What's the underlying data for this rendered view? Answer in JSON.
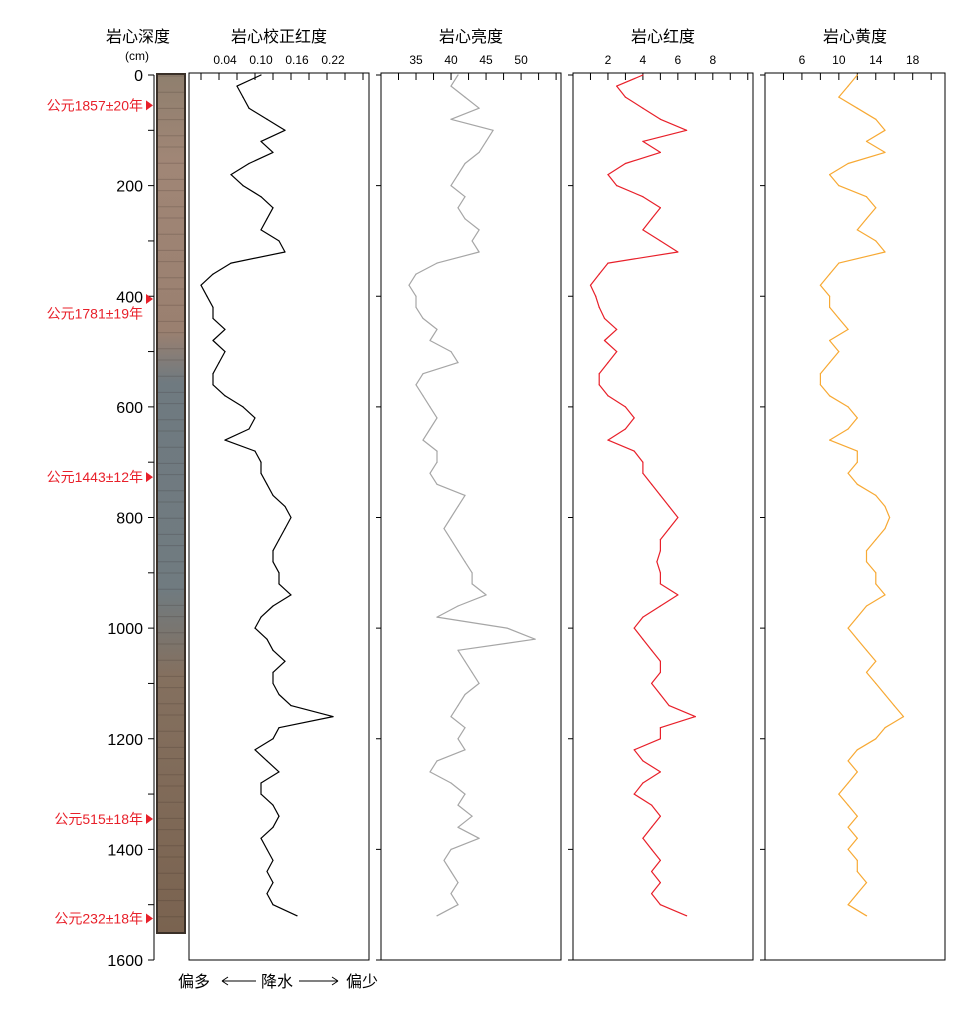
{
  "chart_data": {
    "type": "line",
    "depth_axis": {
      "title": "岩心深度",
      "unit": "(cm)",
      "range": [
        0,
        1600
      ],
      "ticks": [
        0,
        200,
        400,
        600,
        800,
        1000,
        1200,
        1400,
        1600
      ],
      "minor_step": 100
    },
    "age_markers": [
      {
        "label": "公元1857±20年",
        "depth": 55
      },
      {
        "label": "公元1781±19年",
        "depth": 405
      },
      {
        "label": "公元1443±12年",
        "depth": 727
      },
      {
        "label": "公元515±18年",
        "depth": 1345
      },
      {
        "label": "公元232±18年",
        "depth": 1525
      }
    ],
    "precip_annotation": {
      "left": "偏多",
      "middle": "降水",
      "right": "偏少"
    },
    "depth": [
      0,
      20,
      40,
      60,
      80,
      100,
      120,
      140,
      160,
      180,
      200,
      220,
      240,
      260,
      280,
      300,
      320,
      340,
      360,
      380,
      400,
      420,
      440,
      460,
      480,
      500,
      520,
      540,
      560,
      580,
      600,
      620,
      640,
      660,
      680,
      700,
      720,
      740,
      760,
      780,
      800,
      820,
      840,
      860,
      880,
      900,
      920,
      940,
      960,
      980,
      1000,
      1020,
      1040,
      1060,
      1080,
      1100,
      1120,
      1140,
      1160,
      1180,
      1200,
      1220,
      1240,
      1260,
      1280,
      1300,
      1320,
      1340,
      1360,
      1380,
      1400,
      1420,
      1440,
      1460,
      1480,
      1500,
      1520
    ],
    "series": [
      {
        "name": "岩心校正红度",
        "color": "#000000",
        "xlim": [
          -0.02,
          0.28
        ],
        "ticks": [
          0.04,
          0.1,
          0.16,
          0.22
        ],
        "minor_step": 0.03,
        "values": [
          0.1,
          0.06,
          0.07,
          0.08,
          0.11,
          0.14,
          0.1,
          0.12,
          0.08,
          0.05,
          0.07,
          0.1,
          0.12,
          0.11,
          0.1,
          0.13,
          0.14,
          0.05,
          0.02,
          0.0,
          0.01,
          0.02,
          0.02,
          0.04,
          0.02,
          0.04,
          0.03,
          0.02,
          0.02,
          0.04,
          0.07,
          0.09,
          0.08,
          0.04,
          0.09,
          0.1,
          0.1,
          0.11,
          0.12,
          0.14,
          0.15,
          0.14,
          0.13,
          0.12,
          0.12,
          0.13,
          0.13,
          0.15,
          0.12,
          0.1,
          0.09,
          0.11,
          0.12,
          0.14,
          0.12,
          0.12,
          0.13,
          0.15,
          0.22,
          0.13,
          0.12,
          0.09,
          0.11,
          0.13,
          0.1,
          0.1,
          0.12,
          0.13,
          0.12,
          0.1,
          0.11,
          0.12,
          0.11,
          0.12,
          0.11,
          0.12,
          0.16
        ]
      },
      {
        "name": "岩心亮度",
        "color": "#a6a6a6",
        "xlim": [
          30,
          55.7
        ],
        "ticks": [
          35,
          40,
          45,
          50
        ],
        "minor_step": 2.5,
        "values": [
          41,
          40,
          42,
          44,
          40,
          46,
          45,
          44,
          42,
          41,
          40,
          42,
          41,
          42,
          44,
          43,
          44,
          38,
          35,
          34,
          35,
          35,
          36,
          38,
          37,
          40,
          41,
          36,
          35,
          36,
          37,
          38,
          37,
          36,
          38,
          38,
          37,
          38,
          42,
          41,
          40,
          39,
          40,
          41,
          42,
          43,
          43,
          45,
          41,
          38,
          48,
          52,
          41,
          42,
          43,
          44,
          42,
          41,
          40,
          42,
          41,
          42,
          38,
          37,
          40,
          42,
          41,
          43,
          41,
          44,
          40,
          39,
          40,
          41,
          40,
          41,
          38
        ]
      },
      {
        "name": "岩心红度",
        "color": "#e8202a",
        "xlim": [
          0,
          10.3
        ],
        "ticks": [
          2,
          4,
          6,
          8
        ],
        "minor_step": 1,
        "values": [
          4,
          2.5,
          3,
          4,
          5,
          6.5,
          4,
          5,
          3,
          2,
          2.5,
          4,
          5,
          4.5,
          4,
          5,
          6,
          2,
          1.5,
          1,
          1.3,
          1.5,
          1.8,
          2.5,
          1.8,
          2.5,
          2,
          1.5,
          1.5,
          2,
          3,
          3.5,
          3,
          2,
          3.5,
          4,
          4,
          4.5,
          5,
          5.5,
          6,
          5.5,
          5,
          5,
          4.8,
          5,
          5,
          6,
          5,
          4,
          3.5,
          4,
          4.5,
          5,
          5,
          4.5,
          5,
          5.5,
          7,
          5,
          5,
          3.5,
          4,
          5,
          4,
          3.5,
          4.5,
          5,
          4.5,
          4,
          4.5,
          5,
          4.5,
          5,
          4.5,
          5,
          6.5
        ]
      },
      {
        "name": "岩心黄度",
        "color": "#f7a934",
        "xlim": [
          2,
          21.5
        ],
        "ticks": [
          6,
          10,
          14,
          18
        ],
        "minor_step": 2,
        "values": [
          12,
          11,
          10,
          12,
          14,
          15,
          13,
          15,
          11,
          9,
          10,
          13,
          14,
          13,
          12,
          14,
          15,
          10,
          9,
          8,
          9,
          9,
          10,
          11,
          9,
          10,
          9,
          8,
          8,
          9,
          11,
          12,
          11,
          9,
          12,
          12,
          11,
          12,
          14,
          15,
          15.5,
          15,
          14,
          13,
          13,
          14,
          14,
          15,
          13,
          12,
          11,
          12,
          13,
          14,
          13,
          14,
          15,
          16,
          17,
          15,
          14,
          12,
          11,
          12,
          11,
          10,
          11,
          12,
          11,
          12,
          11,
          12,
          12,
          13,
          12,
          11,
          13
        ]
      }
    ]
  }
}
